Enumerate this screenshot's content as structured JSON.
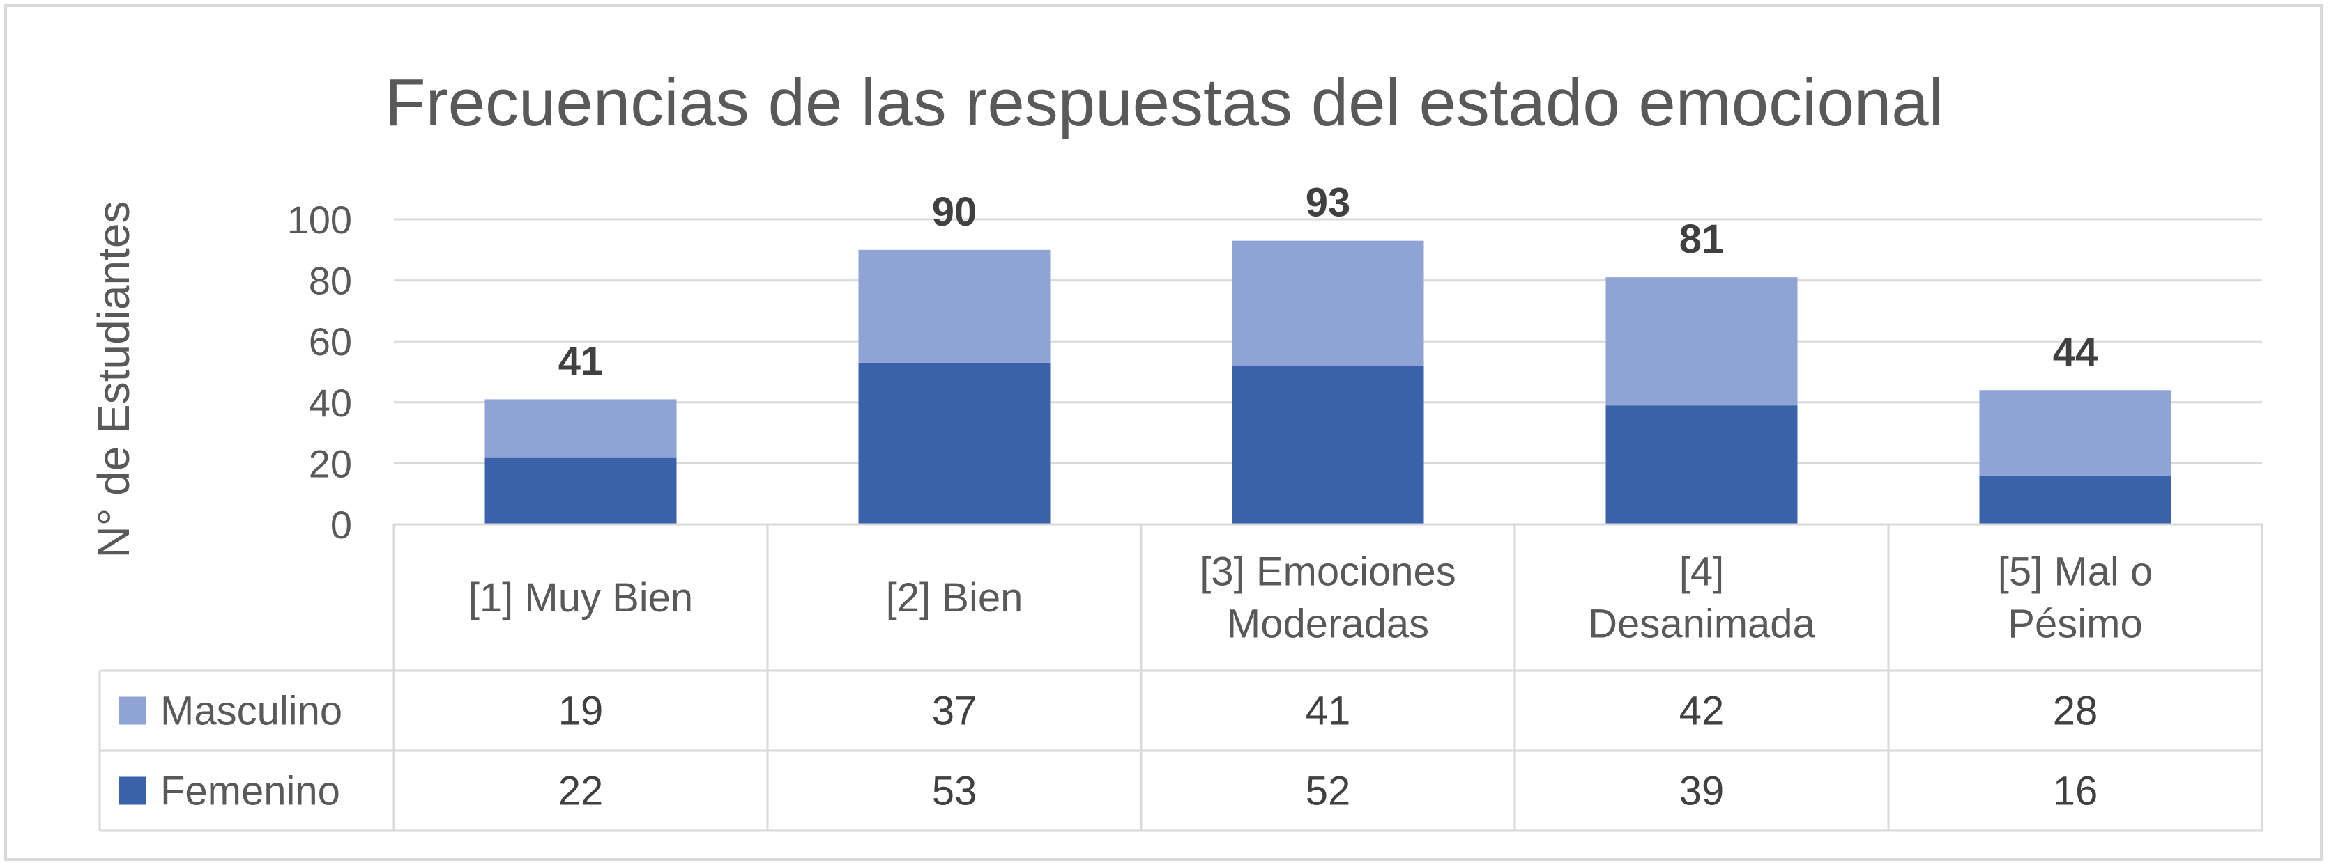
{
  "chart_data": {
    "type": "bar",
    "stacked": true,
    "title": "Frecuencias de las respuestas del estado emocional",
    "ylabel": "N° de Estudiantes",
    "xlabel": "",
    "ylim": [
      0,
      100
    ],
    "yticks": [
      0,
      20,
      40,
      60,
      80,
      100
    ],
    "grid": true,
    "categories": [
      [
        "[1] Muy Bien"
      ],
      [
        "[2] Bien"
      ],
      [
        "[3] Emociones",
        "Moderadas"
      ],
      [
        "[4]",
        "Desanimada"
      ],
      [
        "[5] Mal o",
        "Pésimo"
      ]
    ],
    "series": [
      {
        "name": "Femenino",
        "color": "#3a62aa",
        "values": [
          22,
          53,
          52,
          39,
          16
        ]
      },
      {
        "name": "Masculino",
        "color": "#8fa3d4",
        "values": [
          19,
          37,
          41,
          42,
          28
        ]
      }
    ],
    "totals": [
      41,
      90,
      93,
      81,
      44
    ],
    "data_table": {
      "rows": [
        "Masculino",
        "Femenino"
      ]
    }
  }
}
